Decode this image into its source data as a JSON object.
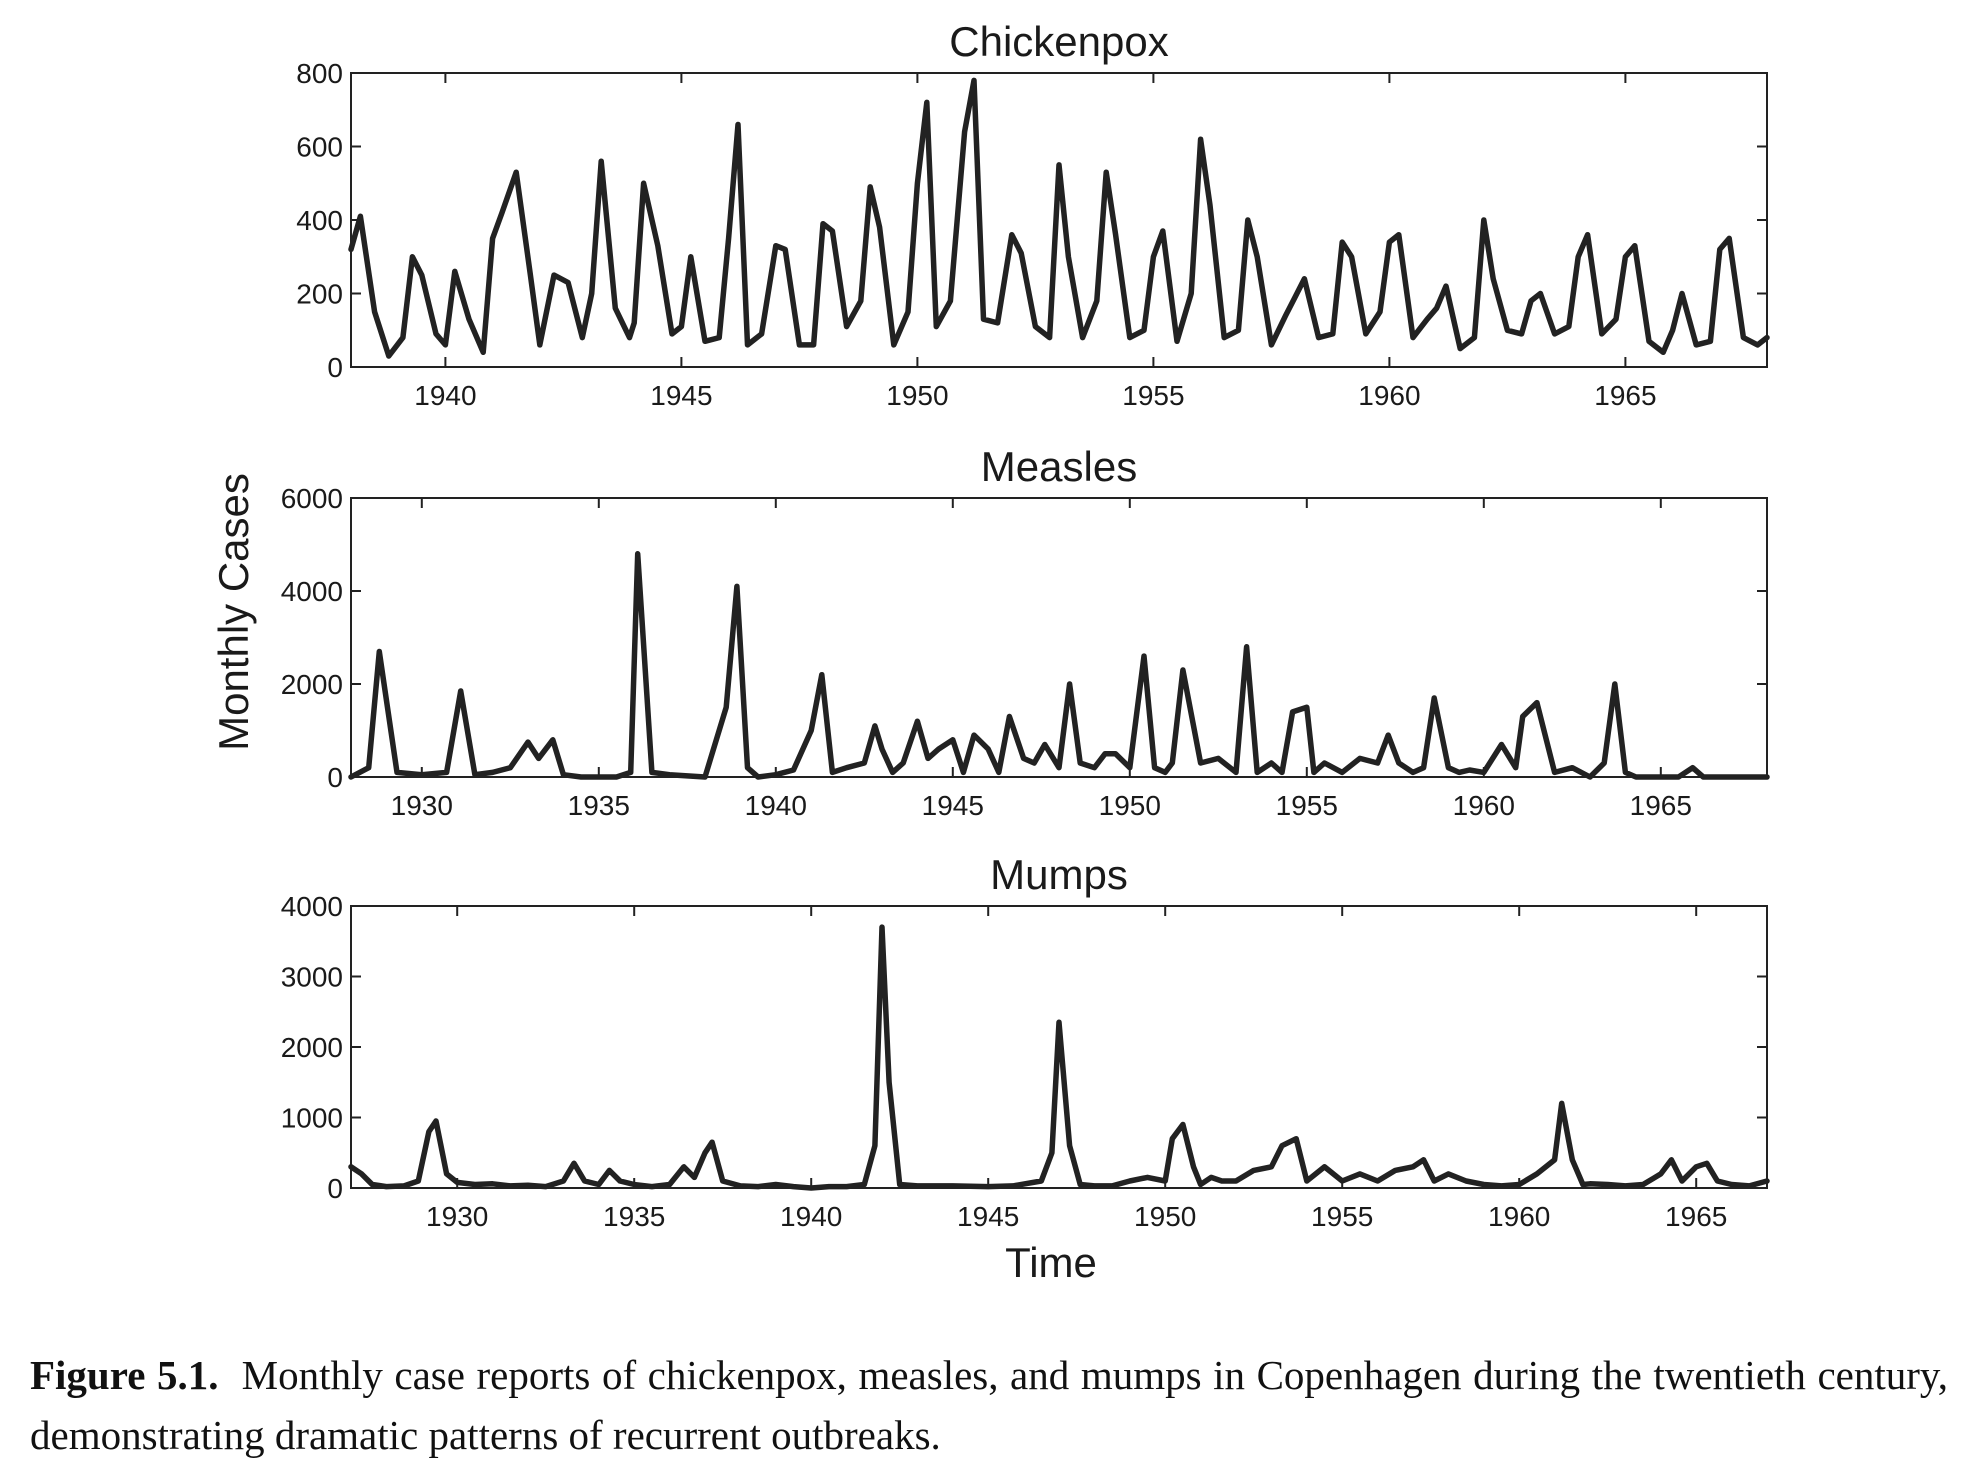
{
  "figure": {
    "ylabel": "Monthly Cases",
    "xlabel": "Time",
    "line_color": "#222222"
  },
  "caption": {
    "label": "Figure 5.1.",
    "text": "Monthly case reports of chickenpox, measles, and mumps in Copenhagen during the twentieth century, demonstrating dramatic patterns of recurrent outbreaks."
  },
  "chart_data": [
    {
      "type": "line",
      "title": "Chickenpox",
      "xlabel": "",
      "ylabel": "",
      "xlim": [
        1938,
        1968
      ],
      "ylim": [
        0,
        800
      ],
      "xticks": [
        1940,
        1945,
        1950,
        1955,
        1960,
        1965
      ],
      "yticks": [
        0,
        200,
        400,
        600,
        800
      ],
      "grid": false,
      "series": [
        {
          "x": [
            1938.0,
            1938.2,
            1938.5,
            1938.8,
            1939.1,
            1939.3,
            1939.5,
            1939.8,
            1940.0,
            1940.2,
            1940.5,
            1940.8,
            1941.0,
            1941.2,
            1941.5,
            1941.8,
            1942.0,
            1942.3,
            1942.6,
            1942.9,
            1943.1,
            1943.3,
            1943.6,
            1943.9,
            1944.0,
            1944.2,
            1944.5,
            1944.8,
            1945.0,
            1945.2,
            1945.5,
            1945.8,
            1946.0,
            1946.2,
            1946.4,
            1946.7,
            1947.0,
            1947.2,
            1947.5,
            1947.8,
            1948.0,
            1948.2,
            1948.5,
            1948.8,
            1949.0,
            1949.2,
            1949.5,
            1949.8,
            1950.0,
            1950.2,
            1950.4,
            1950.7,
            1951.0,
            1951.2,
            1951.4,
            1951.7,
            1952.0,
            1952.2,
            1952.5,
            1952.8,
            1953.0,
            1953.2,
            1953.5,
            1953.8,
            1954.0,
            1954.2,
            1954.5,
            1954.8,
            1955.0,
            1955.2,
            1955.5,
            1955.8,
            1956.0,
            1956.2,
            1956.5,
            1956.8,
            1957.0,
            1957.2,
            1957.5,
            1957.8,
            1958.0,
            1958.2,
            1958.5,
            1958.8,
            1959.0,
            1959.2,
            1959.5,
            1959.8,
            1960.0,
            1960.2,
            1960.5,
            1960.8,
            1961.0,
            1961.2,
            1961.5,
            1961.8,
            1962.0,
            1962.2,
            1962.5,
            1962.8,
            1963.0,
            1963.2,
            1963.5,
            1963.8,
            1964.0,
            1964.2,
            1964.5,
            1964.8,
            1965.0,
            1965.2,
            1965.5,
            1965.8,
            1966.0,
            1966.2,
            1966.5,
            1966.8,
            1967.0,
            1967.2,
            1967.5,
            1967.8,
            1968.0
          ],
          "y": [
            320,
            410,
            150,
            30,
            80,
            300,
            250,
            90,
            60,
            260,
            130,
            40,
            350,
            420,
            530,
            250,
            60,
            250,
            230,
            80,
            200,
            560,
            160,
            80,
            120,
            500,
            330,
            90,
            110,
            300,
            70,
            80,
            350,
            660,
            60,
            90,
            330,
            320,
            60,
            60,
            390,
            370,
            110,
            180,
            490,
            380,
            60,
            150,
            500,
            720,
            110,
            180,
            640,
            780,
            130,
            120,
            360,
            310,
            110,
            80,
            550,
            300,
            80,
            180,
            530,
            360,
            80,
            100,
            300,
            370,
            70,
            200,
            620,
            440,
            80,
            100,
            400,
            300,
            60,
            140,
            190,
            240,
            80,
            90,
            340,
            300,
            90,
            150,
            340,
            360,
            80,
            130,
            160,
            220,
            50,
            80,
            400,
            240,
            100,
            90,
            180,
            200,
            90,
            110,
            300,
            360,
            90,
            130,
            300,
            330,
            70,
            40,
            100,
            200,
            60,
            70,
            320,
            350,
            80,
            60,
            80
          ]
        }
      ]
    },
    {
      "type": "line",
      "title": "Measles",
      "xlabel": "",
      "ylabel": "",
      "xlim": [
        1928,
        1968
      ],
      "ylim": [
        0,
        6000
      ],
      "xticks": [
        1930,
        1935,
        1940,
        1945,
        1950,
        1955,
        1960,
        1965
      ],
      "yticks": [
        0,
        2000,
        4000,
        6000
      ],
      "grid": false,
      "series": [
        {
          "x": [
            1928.0,
            1928.5,
            1928.8,
            1929.3,
            1930.0,
            1930.7,
            1931.1,
            1931.5,
            1932.0,
            1932.5,
            1933.0,
            1933.3,
            1933.7,
            1934.0,
            1934.5,
            1935.0,
            1935.5,
            1935.9,
            1936.1,
            1936.5,
            1937.0,
            1938.0,
            1938.6,
            1938.9,
            1939.2,
            1939.5,
            1940.0,
            1940.5,
            1941.0,
            1941.3,
            1941.6,
            1942.0,
            1942.5,
            1942.8,
            1943.0,
            1943.3,
            1943.6,
            1944.0,
            1944.3,
            1944.6,
            1945.0,
            1945.3,
            1945.6,
            1946.0,
            1946.3,
            1946.6,
            1947.0,
            1947.3,
            1947.6,
            1948.0,
            1948.3,
            1948.6,
            1949.0,
            1949.3,
            1949.6,
            1950.0,
            1950.4,
            1950.7,
            1951.0,
            1951.2,
            1951.5,
            1952.0,
            1952.5,
            1953.0,
            1953.3,
            1953.6,
            1954.0,
            1954.3,
            1954.6,
            1955.0,
            1955.2,
            1955.5,
            1956.0,
            1956.5,
            1957.0,
            1957.3,
            1957.6,
            1958.0,
            1958.3,
            1958.6,
            1959.0,
            1959.3,
            1959.6,
            1960.0,
            1960.5,
            1960.9,
            1961.1,
            1961.5,
            1962.0,
            1962.5,
            1963.0,
            1963.4,
            1963.7,
            1964.0,
            1964.3,
            1964.6,
            1965.0,
            1965.5,
            1965.9,
            1966.2,
            1966.6,
            1967.0,
            1967.5,
            1968.0
          ],
          "y": [
            0,
            200,
            2700,
            100,
            50,
            100,
            1850,
            50,
            100,
            200,
            750,
            400,
            800,
            50,
            0,
            0,
            0,
            100,
            4800,
            100,
            50,
            0,
            1500,
            4100,
            200,
            0,
            50,
            150,
            1000,
            2200,
            100,
            200,
            300,
            1100,
            600,
            100,
            300,
            1200,
            400,
            600,
            800,
            100,
            900,
            600,
            100,
            1300,
            400,
            300,
            700,
            200,
            2000,
            300,
            200,
            500,
            500,
            200,
            2600,
            200,
            100,
            300,
            2300,
            300,
            400,
            100,
            2800,
            100,
            300,
            100,
            1400,
            1500,
            100,
            300,
            100,
            400,
            300,
            900,
            300,
            100,
            200,
            1700,
            200,
            100,
            150,
            100,
            700,
            200,
            1300,
            1600,
            100,
            200,
            0,
            300,
            2000,
            100,
            0,
            0,
            0,
            0,
            200,
            0,
            0,
            0,
            0,
            0
          ]
        }
      ]
    },
    {
      "type": "line",
      "title": "Mumps",
      "xlabel": "Time",
      "ylabel": "",
      "xlim": [
        1927,
        1967
      ],
      "ylim": [
        0,
        4000
      ],
      "xticks": [
        1930,
        1935,
        1940,
        1945,
        1950,
        1955,
        1960,
        1965
      ],
      "yticks": [
        0,
        1000,
        2000,
        3000,
        4000
      ],
      "grid": false,
      "series": [
        {
          "x": [
            1927.0,
            1927.3,
            1927.6,
            1928.0,
            1928.5,
            1928.9,
            1929.2,
            1929.4,
            1929.7,
            1930.0,
            1930.5,
            1931.0,
            1931.5,
            1932.0,
            1932.5,
            1933.0,
            1933.3,
            1933.6,
            1934.0,
            1934.3,
            1934.6,
            1935.0,
            1935.5,
            1936.0,
            1936.4,
            1936.7,
            1937.0,
            1937.2,
            1937.5,
            1938.0,
            1938.5,
            1939.0,
            1939.5,
            1940.0,
            1940.5,
            1941.0,
            1941.5,
            1941.8,
            1942.0,
            1942.2,
            1942.5,
            1943.0,
            1944.0,
            1945.0,
            1945.7,
            1946.5,
            1946.8,
            1947.0,
            1947.3,
            1947.6,
            1948.0,
            1948.5,
            1949.0,
            1949.5,
            1950.0,
            1950.2,
            1950.5,
            1950.8,
            1951.0,
            1951.3,
            1951.6,
            1952.0,
            1952.5,
            1953.0,
            1953.3,
            1953.7,
            1954.0,
            1954.5,
            1955.0,
            1955.5,
            1956.0,
            1956.5,
            1957.0,
            1957.3,
            1957.6,
            1958.0,
            1958.5,
            1959.0,
            1959.5,
            1960.0,
            1960.5,
            1961.0,
            1961.2,
            1961.5,
            1961.8,
            1962.0,
            1962.5,
            1963.0,
            1963.5,
            1964.0,
            1964.3,
            1964.6,
            1965.0,
            1965.3,
            1965.6,
            1966.0,
            1966.5,
            1967.0
          ],
          "y": [
            300,
            200,
            50,
            20,
            30,
            100,
            800,
            950,
            200,
            80,
            50,
            60,
            30,
            40,
            20,
            100,
            350,
            100,
            50,
            250,
            100,
            50,
            20,
            50,
            300,
            150,
            500,
            650,
            100,
            30,
            20,
            50,
            20,
            0,
            20,
            20,
            50,
            600,
            3700,
            1500,
            50,
            30,
            30,
            20,
            30,
            100,
            500,
            2350,
            600,
            50,
            30,
            30,
            100,
            150,
            100,
            700,
            900,
            300,
            50,
            150,
            100,
            100,
            250,
            300,
            600,
            700,
            100,
            300,
            100,
            200,
            100,
            250,
            300,
            400,
            100,
            200,
            100,
            50,
            30,
            50,
            200,
            400,
            1200,
            400,
            50,
            60,
            50,
            30,
            50,
            200,
            400,
            100,
            300,
            350,
            100,
            50,
            30,
            100
          ]
        }
      ]
    }
  ]
}
